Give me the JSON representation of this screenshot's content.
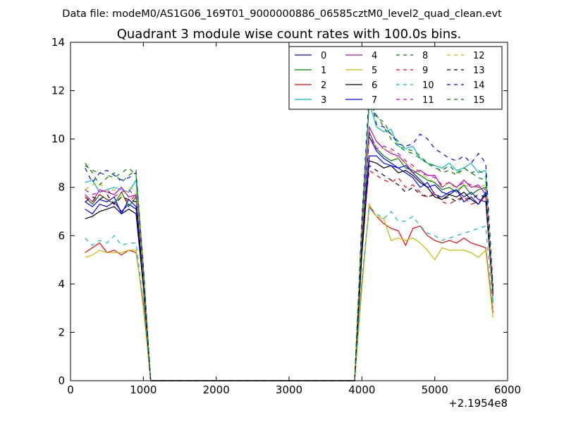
{
  "chart_data": {
    "type": "line",
    "suptitle": "Data file: modeM0/AS1G06_169T01_9000000886_06585cztM0_level2_quad_clean.evt",
    "title": "Quadrant 3 module wise count rates with 100.0s bins.",
    "xlabel": "",
    "ylabel": "",
    "xlim": [
      0,
      6000
    ],
    "ylim": [
      0,
      14
    ],
    "x_offset_label": "+2.1954e8",
    "x_ticks": [
      0,
      1000,
      2000,
      3000,
      4000,
      5000,
      6000
    ],
    "x_tick_labels": [
      "0",
      "1000",
      "2000",
      "3000",
      "4000",
      "5000",
      "6000"
    ],
    "y_ticks": [
      0,
      2,
      4,
      6,
      8,
      10,
      12,
      14
    ],
    "y_tick_labels": [
      "0",
      "2",
      "4",
      "6",
      "8",
      "10",
      "12",
      "14"
    ],
    "legend_location": "upper right",
    "x": [
      200,
      300,
      400,
      500,
      600,
      700,
      800,
      900,
      1000,
      1100,
      1200,
      1300,
      1400,
      1500,
      1600,
      1700,
      1800,
      1900,
      2000,
      2100,
      2200,
      2300,
      2400,
      2500,
      2600,
      2700,
      2800,
      2900,
      3000,
      3100,
      3200,
      3300,
      3400,
      3500,
      3600,
      3700,
      3800,
      3900,
      4000,
      4100,
      4200,
      4300,
      4400,
      4500,
      4600,
      4700,
      4800,
      4900,
      5000,
      5100,
      5200,
      5300,
      5400,
      5500,
      5600,
      5700,
      5800
    ],
    "series": [
      {
        "name": "0",
        "color": "#0000ff",
        "dash": "solid",
        "pre": [
          7.1,
          6.9,
          7.3,
          7.2,
          7.4,
          7.0,
          7.3,
          7.1,
          4.0
        ],
        "post": [
          5.5,
          10.1,
          9.5,
          9.2,
          9.0,
          8.8,
          8.9,
          8.6,
          8.3,
          8.0,
          8.1,
          7.8,
          7.7,
          7.9,
          7.6,
          7.8,
          7.5,
          7.4,
          3.5
        ]
      },
      {
        "name": "1",
        "color": "#008000",
        "dash": "solid",
        "pre": [
          7.6,
          7.3,
          7.7,
          7.5,
          7.3,
          7.8,
          7.2,
          7.6,
          4.3
        ],
        "post": [
          5.8,
          10.3,
          9.6,
          9.3,
          9.1,
          9.2,
          8.8,
          8.7,
          8.5,
          8.3,
          8.2,
          7.9,
          8.0,
          7.8,
          8.1,
          7.7,
          7.9,
          8.0,
          3.7
        ]
      },
      {
        "name": "2",
        "color": "#ff0000",
        "dash": "solid",
        "pre": [
          5.3,
          5.5,
          5.7,
          5.3,
          5.4,
          5.2,
          5.4,
          5.3,
          3.2
        ],
        "post": [
          4.0,
          7.2,
          6.8,
          6.5,
          6.3,
          6.2,
          5.6,
          6.3,
          6.4,
          6.0,
          5.8,
          5.7,
          5.8,
          5.7,
          5.9,
          5.7,
          5.6,
          5.5,
          2.8
        ]
      },
      {
        "name": "3",
        "color": "#00bfbf",
        "dash": "solid",
        "pre": [
          8.2,
          8.3,
          7.8,
          7.9,
          8.0,
          7.9,
          7.8,
          8.3,
          4.5
        ],
        "post": [
          6.3,
          11.5,
          10.5,
          10.3,
          10.4,
          9.7,
          9.6,
          9.7,
          9.2,
          9.0,
          8.9,
          8.8,
          9.0,
          8.7,
          8.8,
          9.0,
          8.6,
          8.7,
          3.2
        ]
      },
      {
        "name": "4",
        "color": "#bf00bf",
        "dash": "solid",
        "pre": [
          7.7,
          7.4,
          7.9,
          7.8,
          7.7,
          8.0,
          7.6,
          7.7,
          4.4
        ],
        "post": [
          6.0,
          10.5,
          9.9,
          9.6,
          9.4,
          9.3,
          9.0,
          8.6,
          8.7,
          8.5,
          8.5,
          8.0,
          8.2,
          8.0,
          8.3,
          8.0,
          8.1,
          7.7,
          3.9
        ]
      },
      {
        "name": "5",
        "color": "#bfbf00",
        "dash": "solid",
        "pre": [
          5.1,
          5.2,
          5.4,
          5.3,
          5.3,
          5.3,
          5.4,
          5.4,
          3.0
        ],
        "post": [
          3.8,
          7.3,
          6.8,
          6.7,
          5.8,
          5.9,
          5.8,
          5.9,
          5.7,
          5.4,
          5.0,
          5.5,
          5.4,
          5.4,
          5.4,
          5.3,
          5.1,
          5.4,
          2.6
        ]
      },
      {
        "name": "6",
        "color": "#000000",
        "dash": "solid",
        "pre": [
          6.7,
          6.8,
          7.0,
          7.1,
          7.2,
          6.9,
          7.1,
          6.9,
          3.9
        ],
        "post": [
          5.2,
          9.1,
          9.0,
          8.8,
          8.9,
          8.6,
          8.7,
          8.5,
          8.2,
          8.0,
          7.6,
          7.5,
          7.7,
          7.6,
          7.8,
          7.5,
          7.3,
          7.7,
          3.6
        ]
      },
      {
        "name": "7",
        "color": "#0000ff",
        "dash": "solid",
        "pre": [
          7.4,
          7.2,
          7.5,
          7.4,
          7.6,
          6.9,
          7.5,
          7.2,
          4.1
        ],
        "post": [
          5.6,
          9.3,
          9.3,
          9.0,
          8.9,
          8.8,
          8.6,
          8.4,
          8.0,
          8.2,
          7.7,
          7.6,
          7.8,
          7.9,
          7.4,
          7.6,
          7.3,
          7.8,
          3.6
        ]
      },
      {
        "name": "8",
        "color": "#008000",
        "dash": "dashed",
        "pre": [
          8.9,
          8.7,
          8.6,
          8.5,
          8.4,
          8.6,
          8.8,
          8.5,
          4.7
        ],
        "post": [
          6.5,
          11.5,
          11.0,
          10.5,
          10.0,
          9.7,
          9.5,
          9.4,
          9.2,
          9.0,
          8.9,
          8.6,
          8.7,
          8.5,
          8.8,
          8.6,
          8.4,
          8.3,
          3.8
        ]
      },
      {
        "name": "9",
        "color": "#ff0000",
        "dash": "dashed",
        "pre": [
          7.6,
          7.4,
          7.7,
          7.5,
          7.3,
          7.6,
          7.4,
          7.7,
          4.2
        ],
        "post": [
          5.8,
          8.7,
          8.5,
          8.3,
          8.2,
          8.4,
          8.0,
          8.1,
          7.8,
          7.6,
          7.8,
          7.4,
          7.3,
          7.5,
          7.6,
          7.3,
          7.4,
          7.6,
          3.5
        ]
      },
      {
        "name": "10",
        "color": "#00bfbf",
        "dash": "dashed",
        "pre": [
          5.9,
          5.6,
          5.8,
          5.7,
          6.0,
          5.6,
          5.7,
          5.7,
          3.3
        ],
        "post": [
          4.2,
          7.2,
          6.9,
          6.7,
          7.0,
          6.6,
          6.6,
          6.8,
          6.4,
          6.1,
          6.0,
          5.8,
          5.9,
          6.0,
          6.1,
          6.2,
          6.3,
          6.4,
          3.0
        ]
      },
      {
        "name": "11",
        "color": "#bf00bf",
        "dash": "dashed",
        "pre": [
          7.9,
          7.7,
          7.8,
          7.9,
          7.6,
          7.8,
          7.9,
          7.6,
          4.3
        ],
        "post": [
          6.1,
          10.2,
          9.6,
          9.7,
          9.6,
          9.4,
          9.1,
          8.9,
          8.6,
          8.5,
          8.4,
          8.1,
          8.2,
          8.0,
          8.2,
          8.1,
          8.0,
          7.9,
          3.8
        ]
      },
      {
        "name": "12",
        "color": "#bfbf00",
        "dash": "dashed",
        "pre": [
          7.9,
          8.1,
          8.2,
          7.8,
          7.9,
          7.6,
          8.0,
          7.9,
          4.4
        ],
        "post": [
          6.2,
          10.0,
          9.7,
          9.6,
          9.5,
          9.2,
          9.0,
          8.8,
          8.6,
          8.4,
          8.2,
          8.0,
          8.2,
          7.9,
          8.1,
          8.0,
          8.0,
          8.1,
          3.9
        ]
      },
      {
        "name": "13",
        "color": "#000000",
        "dash": "dashed",
        "pre": [
          7.4,
          7.6,
          7.5,
          7.7,
          7.3,
          7.6,
          7.5,
          7.4,
          4.1
        ],
        "post": [
          5.6,
          8.9,
          8.7,
          8.5,
          8.3,
          8.1,
          7.8,
          8.0,
          7.7,
          7.6,
          7.7,
          7.5,
          7.6,
          7.4,
          7.6,
          7.5,
          7.7,
          7.6,
          3.6
        ]
      },
      {
        "name": "14",
        "color": "#0000ff",
        "dash": "dashed",
        "pre": [
          8.8,
          8.2,
          8.6,
          8.7,
          8.5,
          8.3,
          8.4,
          8.6,
          4.8
        ],
        "post": [
          6.7,
          12.0,
          10.6,
          10.5,
          10.2,
          9.8,
          9.7,
          9.8,
          10.2,
          10.0,
          9.6,
          9.4,
          9.2,
          9.1,
          9.3,
          9.0,
          9.4,
          9.0,
          3.9
        ]
      },
      {
        "name": "15",
        "color": "#008000",
        "dash": "dashed",
        "pre": [
          9.0,
          8.6,
          8.1,
          8.4,
          8.6,
          8.2,
          8.5,
          8.7,
          4.6
        ],
        "post": [
          6.4,
          11.8,
          10.9,
          10.7,
          10.2,
          9.9,
          9.6,
          9.5,
          9.3,
          9.0,
          8.8,
          8.7,
          8.9,
          8.6,
          8.8,
          8.6,
          8.7,
          8.5,
          3.7
        ]
      }
    ]
  }
}
